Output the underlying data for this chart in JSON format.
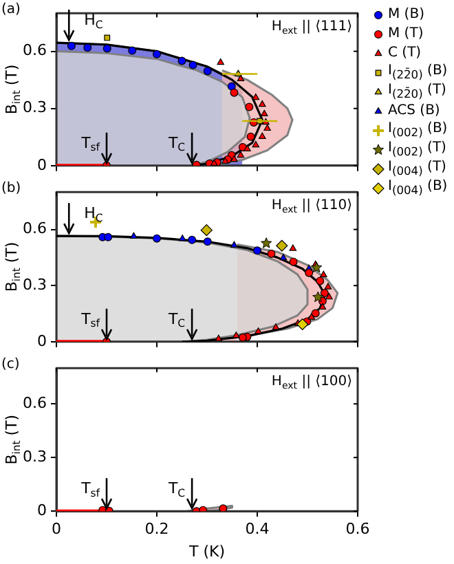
{
  "chart_data": [
    {
      "type": "scatter",
      "ylabel": "B$_{int}$ (T)",
      "xlim": [
        0,
        0.6
      ],
      "xticks": [
        0,
        0.2,
        0.4,
        0.6
      ],
      "ylim": [
        0,
        0.8
      ],
      "yticks": [
        0,
        0.3,
        0.6
      ],
      "tick_labels": "y",
      "legend": "right",
      "annotations": [
        "(a)",
        "H$_{ext}$ || ⟨111⟩",
        {
          "text": "H$_{C}$",
          "x": 0.025,
          "y": 0.645
        },
        {
          "text": "T$_{sf}$",
          "x": 0.1,
          "y": 0
        },
        {
          "text": "T$_{C}$",
          "x": 0.27,
          "y": 0
        }
      ],
      "series": [
        {
          "type": "area",
          "color": "#5a5ad8",
          "x": [
            0,
            0.1,
            0.2,
            0.3,
            0.34,
            0.36,
            0.37
          ],
          "values": [
            0.645,
            0.635,
            0.6,
            0.52,
            0.47,
            0.42,
            0.38
          ]
        },
        {
          "type": "area",
          "color": "#f2b4b4",
          "x": [
            0.33,
            0.38,
            0.43,
            0.46,
            0.47,
            0.46,
            0.42,
            0.37,
            0.32,
            0.28
          ],
          "values": [
            0.5,
            0.45,
            0.37,
            0.3,
            0.24,
            0.16,
            0.08,
            0.03,
            0.005,
            0
          ]
        },
        {
          "type": "area",
          "color": "#d6d6d6",
          "x": [
            0,
            0.1,
            0.2,
            0.28,
            0.33,
            0.37,
            0.385,
            0.375,
            0.34,
            0.3,
            0.27
          ],
          "values": [
            0.6,
            0.59,
            0.56,
            0.5,
            0.44,
            0.36,
            0.25,
            0.15,
            0.07,
            0.02,
            0
          ]
        },
        {
          "type": "line",
          "color": "#000000",
          "x": [
            0,
            0.1,
            0.2,
            0.3,
            0.35,
            0.39,
            0.41,
            0.39,
            0.35,
            0.3,
            0.27
          ],
          "values": [
            0.645,
            0.635,
            0.6,
            0.52,
            0.45,
            0.36,
            0.24,
            0.12,
            0.05,
            0.01,
            0
          ]
        },
        {
          "type": "line",
          "color": "#ff0000",
          "x": [
            0,
            0.1
          ],
          "values": [
            0,
            0
          ]
        },
        {
          "type": "scatter",
          "name": "M (B)",
          "color": "#0000ff",
          "marker": "circle",
          "x": [
            0.03,
            0.062,
            0.101,
            0.151,
            0.2,
            0.25,
            0.272,
            0.301,
            0.349
          ],
          "values": [
            0.628,
            0.619,
            0.615,
            0.604,
            0.585,
            0.55,
            0.528,
            0.496,
            0.416
          ]
        },
        {
          "type": "scatter",
          "name": "M (T)",
          "color": "#ff0000",
          "marker": "circle",
          "x": [
            0.354,
            0.384,
            0.393,
            0.387,
            0.371,
            0.349,
            0.341,
            0.32,
            0.305,
            0.279,
            0.1
          ],
          "values": [
            0.383,
            0.308,
            0.227,
            0.152,
            0.097,
            0.054,
            0.032,
            0.017,
            0.011,
            0.004,
            0
          ]
        },
        {
          "type": "scatter",
          "name": "C (T)",
          "color": "#ff0000",
          "marker": "triangle",
          "x": [
            0.327,
            0.367,
            0.397,
            0.41,
            0.414,
            0.417,
            0.42,
            0.41,
            0.397,
            0.38,
            0.367,
            0.354,
            0.336,
            0.314
          ],
          "values": [
            0.541,
            0.455,
            0.357,
            0.321,
            0.271,
            0.227,
            0.195,
            0.152,
            0.108,
            0.087,
            0.054,
            0.032,
            0.022,
            0.011
          ]
        },
        {
          "type": "scatter",
          "name": "I$_{(22̄0)}$ (B)",
          "color": "#c8b400",
          "marker": "square",
          "x": [
            0.101,
            0.405
          ],
          "values": [
            0.671,
            0.234
          ],
          "xerrors": [
            null,
            [
              0.37,
              0.44
            ]
          ]
        },
        {
          "type": "scatter",
          "name": "I$_{(22̄0)}$ (T)",
          "color": "#c8b400",
          "marker": "triangle",
          "x": [
            0.362
          ],
          "values": [
            0.481
          ],
          "xerrors": [
            [
              0.33,
              0.4
            ]
          ]
        }
      ]
    },
    {
      "type": "scatter",
      "ylabel": "B$_{int}$ (T)",
      "xlim": [
        0,
        0.6
      ],
      "xticks": [
        0,
        0.2,
        0.4,
        0.6
      ],
      "ylim": [
        0,
        0.8
      ],
      "yticks": [
        0,
        0.3,
        0.6
      ],
      "tick_labels": "y",
      "legend": "right",
      "annotations": [
        "(b)",
        "H$_{ext}$ || ⟨110⟩",
        {
          "text": "H$_{C}$",
          "x": 0.025,
          "y": 0.565
        },
        {
          "text": "T$_{sf}$",
          "x": 0.1,
          "y": 0
        },
        {
          "text": "T$_{C}$",
          "x": 0.27,
          "y": 0
        }
      ],
      "series": [
        {
          "type": "area",
          "color": "#f2b4b4",
          "x": [
            0.36,
            0.44,
            0.5,
            0.54,
            0.56,
            0.55,
            0.52,
            0.46,
            0.38,
            0.3,
            0.26
          ],
          "values": [
            0.52,
            0.48,
            0.41,
            0.33,
            0.26,
            0.18,
            0.12,
            0.07,
            0.03,
            0.008,
            0
          ]
        },
        {
          "type": "area",
          "color": "#d6d6d6",
          "x": [
            0,
            0.1,
            0.2,
            0.3,
            0.38,
            0.44,
            0.48,
            0.5,
            0.5,
            0.48,
            0.43,
            0.36,
            0.3,
            0.26
          ],
          "values": [
            0.565,
            0.562,
            0.553,
            0.53,
            0.49,
            0.43,
            0.36,
            0.28,
            0.2,
            0.14,
            0.08,
            0.035,
            0.01,
            0
          ]
        },
        {
          "type": "line",
          "color": "#000000",
          "x": [
            0,
            0.1,
            0.2,
            0.3,
            0.38,
            0.44,
            0.49,
            0.52,
            0.535,
            0.525,
            0.5,
            0.45,
            0.38,
            0.3,
            0.25
          ],
          "values": [
            0.565,
            0.564,
            0.555,
            0.535,
            0.5,
            0.45,
            0.39,
            0.32,
            0.25,
            0.18,
            0.12,
            0.07,
            0.03,
            0.005,
            0
          ]
        },
        {
          "type": "line",
          "color": "#ff0000",
          "x": [
            0,
            0.1
          ],
          "values": [
            0,
            0
          ]
        },
        {
          "type": "scatter",
          "color": "#0000ff",
          "marker": "circle",
          "x": [
            0.092,
            0.103,
            0.2,
            0.27,
            0.301,
            0.4
          ],
          "values": [
            0.559,
            0.559,
            0.552,
            0.544,
            0.535,
            0.487
          ]
        },
        {
          "type": "scatter",
          "name": "ACS (B)",
          "color": "#0000ff",
          "marker": "triangle",
          "x": [
            0.154,
            0.251,
            0.354,
            0.452,
            0.503
          ],
          "values": [
            0.563,
            0.55,
            0.515,
            0.448,
            0.39
          ]
        },
        {
          "type": "scatter",
          "color": "#ff0000",
          "marker": "circle",
          "x": [
            0.428,
            0.472,
            0.503,
            0.525,
            0.534,
            0.53,
            0.516,
            0.499,
            0.38,
            0.371,
            0.1
          ],
          "values": [
            0.47,
            0.427,
            0.368,
            0.325,
            0.26,
            0.217,
            0.152,
            0.108,
            0.026,
            0.022,
            0
          ]
        },
        {
          "type": "scatter",
          "color": "#ff0000",
          "marker": "triangle",
          "x": [
            0.471,
            0.516,
            0.532,
            0.541,
            0.543,
            0.53,
            0.508,
            0.481,
            0.437,
            0.402,
            0.358,
            0.323
          ],
          "values": [
            0.498,
            0.412,
            0.357,
            0.292,
            0.238,
            0.184,
            0.13,
            0.097,
            0.076,
            0.054,
            0.032,
            0.015
          ]
        },
        {
          "type": "scatter",
          "name": "I$_{(002)}$ (B)",
          "color": "#c8b400",
          "marker": "cross",
          "x": [
            0.078
          ],
          "values": [
            0.639
          ]
        },
        {
          "type": "scatter",
          "name": "I$_{(002)}$ (T)",
          "color": "#6b6b00",
          "marker": "star",
          "x": [
            0.418,
            0.518,
            0.521
          ],
          "values": [
            0.526,
            0.396,
            0.238
          ]
        },
        {
          "type": "scatter",
          "name": "I$_{(004)}$ (T)",
          "color": "#c8b400",
          "marker": "diamond",
          "x": [
            0.299,
            0.449
          ],
          "values": [
            0.596,
            0.513
          ]
        },
        {
          "type": "scatter",
          "name": "I$_{(004)}$ (B)",
          "color": "#e0d000",
          "marker": "diamond",
          "x": [
            0.49
          ],
          "values": [
            0.093
          ]
        }
      ]
    },
    {
      "type": "scatter",
      "ylabel": "B$_{int}$ (T)",
      "xlabel": "T (K)",
      "xlim": [
        0,
        0.6
      ],
      "xticks": [
        0,
        0.2,
        0.4,
        0.6
      ],
      "ylim": [
        0,
        0.8
      ],
      "yticks": [
        0,
        0.3,
        0.6
      ],
      "annotations": [
        "(c)",
        "H$_{ext}$ || ⟨100⟩",
        {
          "text": "T$_{sf}$",
          "x": 0.1,
          "y": 0
        },
        {
          "text": "T$_{C}$",
          "x": 0.27,
          "y": 0
        }
      ],
      "series": [
        {
          "type": "area",
          "color": "#f2b4b4",
          "x": [
            0.26,
            0.3,
            0.35,
            0.35,
            0.32,
            0.29
          ],
          "values": [
            0,
            0.015,
            0.03,
            0.02,
            0.006,
            0
          ]
        },
        {
          "type": "line",
          "color": "#ff0000",
          "x": [
            0,
            0.1
          ],
          "values": [
            0,
            0
          ]
        },
        {
          "type": "scatter",
          "color": "#ff0000",
          "marker": "circle",
          "x": [
            0.092,
            0.105,
            0.279,
            0.292,
            0.332
          ],
          "values": [
            0.006,
            0.002,
            0,
            0.006,
            0.015
          ]
        }
      ]
    }
  ]
}
